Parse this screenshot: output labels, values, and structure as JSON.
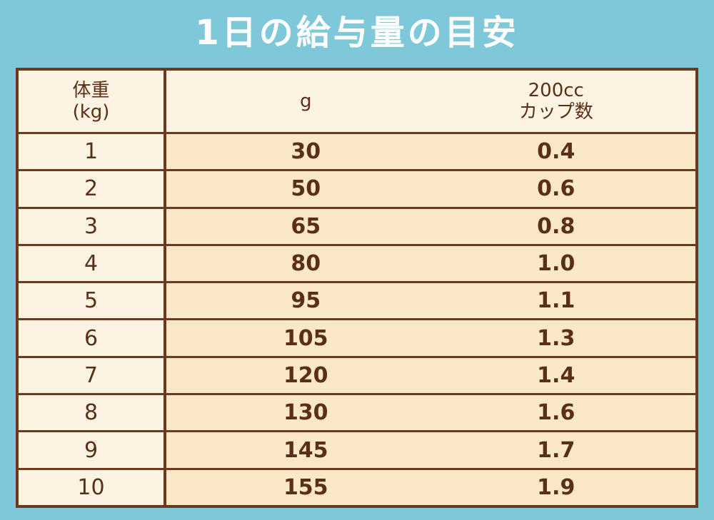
{
  "header": {
    "title": "1日の給与量の目安"
  },
  "table": {
    "columns": [
      [
        "体重",
        "(kg)"
      ],
      [
        "g"
      ],
      [
        "200cc",
        "カップ数"
      ]
    ],
    "rows": [
      [
        "1",
        "30",
        "0.4"
      ],
      [
        "2",
        "50",
        "0.6"
      ],
      [
        "3",
        "65",
        "0.8"
      ],
      [
        "4",
        "80",
        "1.0"
      ],
      [
        "5",
        "95",
        "1.1"
      ],
      [
        "6",
        "105",
        "1.3"
      ],
      [
        "7",
        "120",
        "1.4"
      ],
      [
        "8",
        "130",
        "1.6"
      ],
      [
        "9",
        "145",
        "1.7"
      ],
      [
        "10",
        "155",
        "1.9"
      ]
    ]
  }
}
